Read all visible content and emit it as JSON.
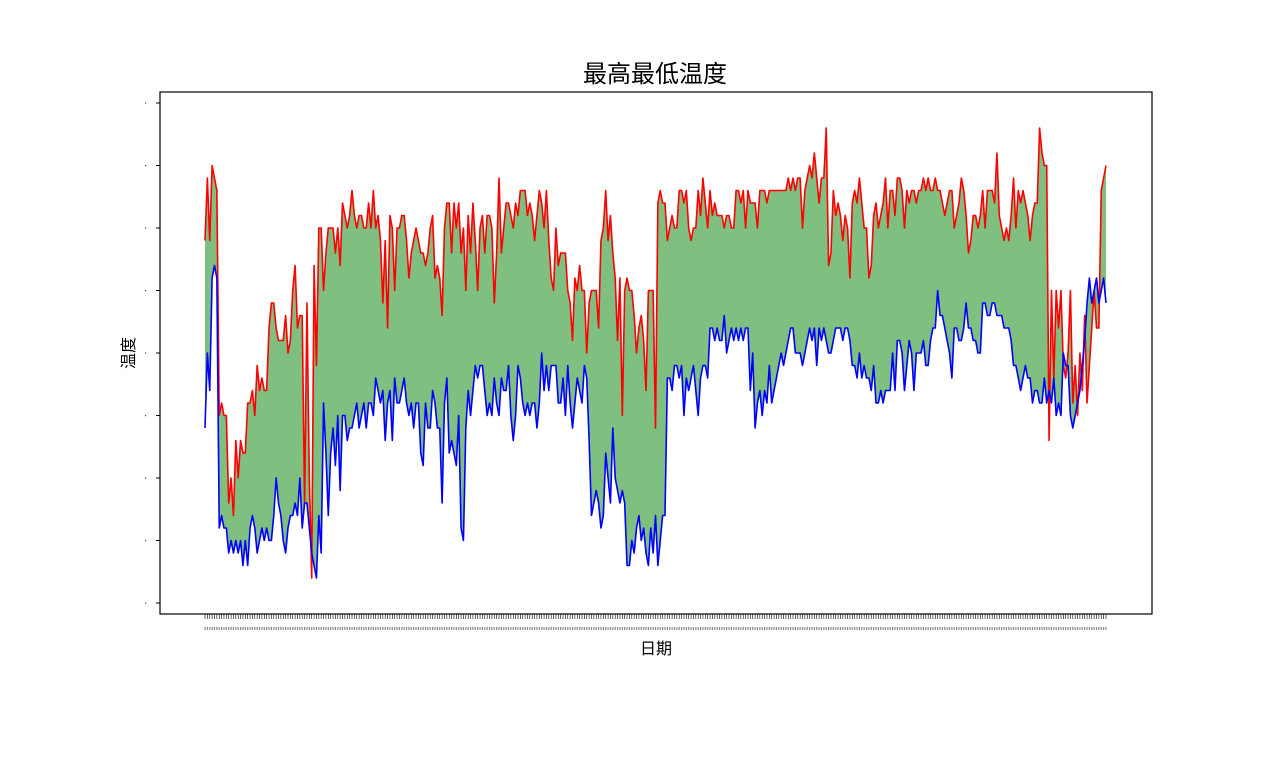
{
  "chart_data": {
    "type": "area",
    "title": "最高最低温度",
    "xlabel": "日期",
    "ylabel": "温度",
    "ylim": [
      0,
      40
    ],
    "grid": false,
    "legend": "none",
    "fill_color": "#7fbf7f",
    "series": [
      {
        "role": "high",
        "color": "#ff0000",
        "values": [
          29,
          34,
          29,
          35,
          34,
          33,
          15,
          16,
          15,
          15,
          8,
          10,
          7,
          13,
          10,
          13,
          12,
          12,
          16,
          16,
          17,
          15,
          19,
          17,
          18,
          17,
          17,
          22,
          24,
          24,
          22,
          21,
          21,
          21,
          23,
          20,
          21,
          25,
          27,
          22,
          23,
          23,
          8,
          24,
          10,
          2,
          27,
          19,
          30,
          30,
          25,
          28,
          30,
          30,
          30,
          28,
          30,
          27,
          32,
          31,
          30,
          31,
          33,
          31,
          30,
          31,
          31,
          30,
          30,
          32,
          30,
          33,
          30,
          31,
          29,
          24,
          29,
          22,
          31,
          30,
          25,
          30,
          30,
          31,
          31,
          29,
          26,
          28,
          29,
          30,
          29,
          28,
          28,
          27,
          28,
          30,
          31,
          26,
          27,
          26,
          23,
          30,
          32,
          32,
          28,
          32,
          30,
          32,
          28,
          30,
          25,
          31,
          28,
          32,
          29,
          25,
          30,
          31,
          28,
          31,
          31,
          30,
          24,
          28,
          34,
          28,
          30,
          32,
          32,
          31,
          30,
          32,
          31,
          33,
          33,
          33,
          31,
          32,
          31,
          29,
          31,
          33,
          32,
          30,
          33,
          29,
          26,
          25,
          30,
          27,
          28,
          28,
          28,
          25,
          24,
          21,
          26,
          25,
          27,
          25,
          25,
          20,
          24,
          25,
          25,
          25,
          22,
          29,
          30,
          33,
          29,
          31,
          28,
          26,
          21,
          26,
          15,
          25,
          26,
          25,
          25,
          23,
          20,
          22,
          23,
          21,
          17,
          25,
          25,
          25,
          14,
          32,
          33,
          32,
          32,
          29,
          30,
          31,
          30,
          30,
          33,
          33,
          32,
          33,
          30,
          29,
          30,
          30,
          33,
          31,
          34,
          32,
          30,
          33,
          31,
          32,
          31,
          31,
          31,
          30,
          31,
          31,
          30,
          30,
          33,
          33,
          32,
          33,
          30,
          33,
          32,
          32,
          32,
          30,
          33,
          33,
          33,
          32,
          33,
          33,
          33,
          33,
          33,
          33,
          33,
          33,
          34,
          33,
          34,
          33,
          34,
          34,
          30,
          33,
          34,
          35,
          34,
          36,
          34,
          32,
          34,
          34,
          38,
          27,
          28,
          33,
          31,
          32,
          31,
          29,
          31,
          30,
          26,
          32,
          33,
          32,
          34,
          32,
          30,
          30,
          26,
          27,
          31,
          32,
          30,
          31,
          32,
          34,
          30,
          33,
          33,
          31,
          34,
          34,
          33,
          30,
          33,
          32,
          33,
          33,
          32,
          33,
          33,
          34,
          33,
          34,
          33,
          33,
          34,
          33,
          33,
          32,
          31,
          32,
          33,
          33,
          30,
          31,
          32,
          34,
          33,
          31,
          28,
          29,
          31,
          31,
          30,
          31,
          33,
          30,
          33,
          33,
          33,
          32,
          36,
          31,
          30,
          29,
          30,
          29,
          31,
          34,
          30,
          33,
          32,
          33,
          32,
          31,
          29,
          31,
          32,
          32,
          38,
          36,
          35,
          35,
          13,
          25,
          18,
          25,
          22,
          25,
          19,
          18,
          20,
          25,
          16,
          19,
          15,
          20,
          17,
          23,
          16,
          19,
          22,
          25,
          22,
          22,
          33,
          34,
          35
        ]
      },
      {
        "role": "low",
        "color": "#0000ff",
        "values": [
          14,
          20,
          17,
          26,
          27,
          26,
          6,
          7,
          6,
          6,
          4,
          5,
          4,
          5,
          4,
          5,
          3,
          5,
          3,
          6,
          7,
          6,
          4,
          5,
          6,
          5,
          6,
          5,
          5,
          7,
          10,
          8,
          7,
          5,
          4,
          6,
          7,
          7,
          8,
          7,
          10,
          6,
          8,
          8,
          6,
          4,
          3,
          2,
          7,
          4,
          16,
          12,
          7,
          12,
          14,
          11,
          15,
          9,
          15,
          15,
          13,
          14,
          14,
          15,
          16,
          14,
          15,
          16,
          14,
          16,
          16,
          15,
          18,
          17,
          16,
          17,
          13,
          16,
          17,
          13,
          18,
          16,
          16,
          17,
          18,
          16,
          15,
          16,
          14,
          16,
          16,
          12,
          11,
          16,
          14,
          14,
          17,
          16,
          14,
          14,
          8,
          16,
          18,
          12,
          13,
          12,
          11,
          15,
          6,
          5,
          14,
          17,
          15,
          17,
          19,
          18,
          19,
          19,
          17,
          15,
          16,
          15,
          18,
          16,
          15,
          18,
          17,
          17,
          19,
          15,
          13,
          15,
          19,
          18,
          16,
          15,
          16,
          15,
          16,
          16,
          14,
          16,
          20,
          17,
          19,
          17,
          19,
          19,
          19,
          16,
          16,
          18,
          15,
          19,
          16,
          14,
          16,
          18,
          17,
          16,
          19,
          18,
          13,
          7,
          8,
          9,
          8,
          6,
          7,
          12,
          10,
          8,
          14,
          10,
          9,
          8,
          9,
          8,
          3,
          3,
          5,
          4,
          6,
          7,
          5,
          6,
          4,
          3,
          6,
          4,
          7,
          3,
          5,
          7,
          7,
          18,
          18,
          17,
          19,
          19,
          18,
          19,
          15,
          18,
          17,
          18,
          19,
          17,
          15,
          18,
          19,
          19,
          18,
          22,
          22,
          21,
          22,
          21,
          21,
          23,
          20,
          21,
          22,
          21,
          22,
          21,
          22,
          21,
          22,
          22,
          17,
          20,
          14,
          16,
          17,
          15,
          17,
          16,
          19,
          16,
          17,
          18,
          19,
          20,
          19,
          20,
          21,
          22,
          22,
          20,
          20,
          20,
          19,
          20,
          21,
          22,
          21,
          22,
          19,
          22,
          21,
          22,
          21,
          20,
          20,
          21,
          22,
          22,
          22,
          21,
          22,
          22,
          21,
          19,
          19,
          18,
          20,
          18,
          19,
          18,
          18,
          17,
          19,
          16,
          16,
          17,
          16,
          17,
          17,
          17,
          20,
          17,
          21,
          21,
          20,
          17,
          19,
          21,
          20,
          17,
          20,
          20,
          20,
          21,
          19,
          19,
          21,
          22,
          22,
          25,
          23,
          23,
          22,
          21,
          20,
          18,
          22,
          22,
          21,
          21,
          22,
          24,
          22,
          22,
          21,
          21,
          20,
          20,
          24,
          24,
          23,
          23,
          24,
          24,
          23,
          23,
          23,
          22,
          22,
          22,
          21,
          19,
          19,
          18,
          17,
          18,
          19,
          18,
          18,
          16,
          17,
          17,
          16,
          16,
          18,
          16,
          17,
          16,
          18,
          15,
          16,
          15,
          20,
          19,
          19,
          15,
          14,
          15,
          16,
          17,
          19,
          21,
          24,
          26,
          24,
          25,
          26,
          24,
          25,
          26,
          24,
          12,
          11,
          12,
          18,
          22,
          21,
          20,
          18,
          15,
          17,
          11,
          10,
          12,
          16,
          20,
          17,
          15,
          17,
          12,
          18,
          14,
          13,
          15,
          18,
          19,
          20,
          18,
          28,
          30
        ]
      }
    ]
  }
}
